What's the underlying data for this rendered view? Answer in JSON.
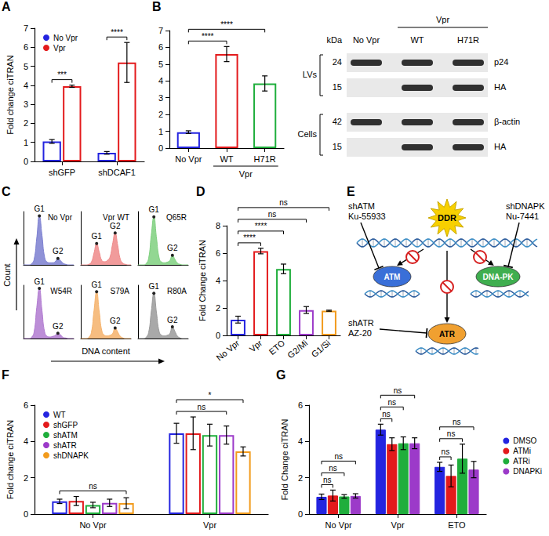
{
  "chart_data": [
    {
      "panel": "A",
      "type": "bar",
      "y_label": "Fold change ciTRAN",
      "categories": [
        "shGFP",
        "shDCAF1"
      ],
      "series": [
        {
          "name": "No Vpr",
          "color": "#2424e0",
          "values": [
            1.05,
            0.45
          ],
          "errors": [
            0.1,
            0.07
          ]
        },
        {
          "name": "Vpr",
          "color": "#e31a1c",
          "values": [
            3.95,
            5.2
          ],
          "errors": [
            0.06,
            1.05
          ]
        }
      ],
      "ylim": [
        0,
        7
      ],
      "yticks": [
        0,
        1,
        2,
        3,
        4,
        5,
        6,
        7
      ],
      "grid": false,
      "legend": "top-left",
      "significance": [
        {
          "from": [
            0,
            0
          ],
          "to": [
            0,
            1
          ],
          "label": "***"
        },
        {
          "from": [
            1,
            0
          ],
          "to": [
            1,
            1
          ],
          "label": "****"
        }
      ]
    },
    {
      "panel": "B",
      "type": "bar",
      "categories": [
        "No Vpr",
        "WT",
        "H71R"
      ],
      "group_label": {
        "text": "Vpr",
        "categories": [
          "WT",
          "H71R"
        ]
      },
      "values": [
        0.95,
        5.6,
        3.85
      ],
      "errors": [
        0.08,
        0.45,
        0.45
      ],
      "colors": [
        "#2424e0",
        "#e31a1c",
        "#1fae3c"
      ],
      "ylim": [
        0,
        7
      ],
      "yticks": [
        0,
        1,
        2,
        3,
        4,
        5,
        6,
        7
      ],
      "grid": false,
      "significance": [
        {
          "from": [
            0,
            0
          ],
          "to": [
            1,
            0
          ],
          "label": "****"
        },
        {
          "from": [
            0,
            0
          ],
          "to": [
            2,
            0
          ],
          "label": "****"
        }
      ]
    },
    {
      "panel": "C",
      "type": "area",
      "x_label": "DNA content",
      "y_label": "Count",
      "x": [
        0,
        1,
        2,
        3,
        4,
        5,
        6,
        7,
        8,
        9,
        10,
        11,
        12,
        13,
        14,
        15,
        16,
        17,
        18,
        19
      ],
      "xlim": [
        0,
        19
      ],
      "ylim": [
        0,
        100
      ],
      "tick_labels": false,
      "grid": false,
      "series": [
        {
          "name": "No Vpr",
          "color": "#7b7fd0",
          "values": [
            0,
            0,
            0,
            2,
            10,
            50,
            92,
            55,
            14,
            5,
            4,
            4,
            6,
            12,
            8,
            3,
            1,
            0,
            0,
            0
          ],
          "peaks": [
            {
              "label": "G1",
              "x": 6
            },
            {
              "label": "G2",
              "x": 13
            }
          ]
        },
        {
          "name": "Vpr WT",
          "color": "#ef8a8a",
          "values": [
            0,
            0,
            0,
            1,
            5,
            22,
            40,
            24,
            8,
            6,
            8,
            14,
            38,
            60,
            36,
            10,
            3,
            1,
            0,
            0
          ],
          "peaks": [
            {
              "label": "G1",
              "x": 6
            },
            {
              "label": "G2",
              "x": 13
            }
          ]
        },
        {
          "name": "Q65R",
          "color": "#7fd07f",
          "values": [
            0,
            0,
            0,
            2,
            12,
            55,
            90,
            50,
            13,
            5,
            4,
            5,
            8,
            18,
            10,
            3,
            1,
            0,
            0,
            0
          ],
          "peaks": [
            {
              "label": "G1",
              "x": 6
            },
            {
              "label": "G2",
              "x": 13
            }
          ]
        },
        {
          "name": "W54R",
          "color": "#b07ad0",
          "values": [
            0,
            0,
            0,
            2,
            12,
            58,
            94,
            52,
            12,
            4,
            3,
            4,
            6,
            10,
            7,
            2,
            1,
            0,
            0,
            0
          ],
          "peaks": [
            {
              "label": "G1",
              "x": 6
            },
            {
              "label": "G2",
              "x": 13
            }
          ]
        },
        {
          "name": "S79A",
          "color": "#f5b26b",
          "values": [
            0,
            0,
            0,
            2,
            11,
            52,
            88,
            50,
            14,
            6,
            5,
            6,
            9,
            20,
            12,
            4,
            1,
            0,
            0,
            0
          ],
          "peaks": [
            {
              "label": "G1",
              "x": 6
            },
            {
              "label": "G2",
              "x": 13
            }
          ]
        },
        {
          "name": "R80A",
          "color": "#9a9a9a",
          "values": [
            0,
            0,
            0,
            2,
            11,
            50,
            85,
            48,
            13,
            6,
            5,
            6,
            9,
            22,
            13,
            4,
            1,
            0,
            0,
            0
          ],
          "peaks": [
            {
              "label": "G1",
              "x": 6
            },
            {
              "label": "G2",
              "x": 13
            }
          ]
        }
      ]
    },
    {
      "panel": "D",
      "type": "bar",
      "y_label": "Fold Change ciTRAN",
      "categories": [
        "No Vpr",
        "Vpr",
        "ETO",
        "G2/Mi",
        "G1/Si"
      ],
      "values": [
        1.15,
        6.15,
        4.85,
        1.85,
        1.8
      ],
      "errors": [
        0.25,
        0.2,
        0.35,
        0.25,
        0.04
      ],
      "colors": [
        "#2424e0",
        "#e31a1c",
        "#1fae3c",
        "#9c3ac9",
        "#f29b1d"
      ],
      "ylim": [
        0,
        8
      ],
      "yticks": [
        0,
        2,
        4,
        6,
        8
      ],
      "grid": false,
      "significance": [
        {
          "from": [
            0,
            0
          ],
          "to": [
            1,
            0
          ],
          "label": "****"
        },
        {
          "from": [
            0,
            0
          ],
          "to": [
            2,
            0
          ],
          "label": "****"
        },
        {
          "from": [
            0,
            0
          ],
          "to": [
            3,
            0
          ],
          "label": "ns"
        },
        {
          "from": [
            0,
            0
          ],
          "to": [
            4,
            0
          ],
          "label": "ns"
        }
      ]
    },
    {
      "panel": "F",
      "type": "bar",
      "y_label": "Fold change ciTRAN",
      "categories": [
        "No Vpr",
        "Vpr"
      ],
      "series": [
        {
          "name": "WT",
          "color": "#2424e0",
          "values": [
            0.7,
            4.45
          ],
          "errors": [
            0.12,
            0.55
          ]
        },
        {
          "name": "shGFP",
          "color": "#e31a1c",
          "values": [
            0.72,
            4.45
          ],
          "errors": [
            0.25,
            0.9
          ]
        },
        {
          "name": "shATM",
          "color": "#1fae3c",
          "values": [
            0.5,
            4.35
          ],
          "errors": [
            0.15,
            0.6
          ]
        },
        {
          "name": "shATR",
          "color": "#9c3ac9",
          "values": [
            0.62,
            4.35
          ],
          "errors": [
            0.2,
            0.5
          ]
        },
        {
          "name": "shDNAPK",
          "color": "#f29b1d",
          "values": [
            0.6,
            3.45
          ],
          "errors": [
            0.3,
            0.25
          ]
        }
      ],
      "ylim": [
        0,
        6
      ],
      "yticks": [
        0,
        2,
        4,
        6
      ],
      "grid": false,
      "legend": "top-left",
      "significance": [
        {
          "from": [
            0,
            0
          ],
          "to": [
            0,
            4
          ],
          "label": "ns"
        },
        {
          "from": [
            1,
            0
          ],
          "to": [
            1,
            3
          ],
          "label": "ns"
        },
        {
          "from": [
            1,
            0
          ],
          "to": [
            1,
            4
          ],
          "label": "*"
        }
      ]
    },
    {
      "panel": "G",
      "type": "bar",
      "y_label": "Fold Change ciTRAN",
      "categories": [
        "No Vpr",
        "Vpr",
        "ETO"
      ],
      "series": [
        {
          "name": "DMSO",
          "color": "#2424e0",
          "values": [
            0.95,
            4.65,
            2.6
          ],
          "errors": [
            0.15,
            0.3,
            0.25
          ]
        },
        {
          "name": "ATMi",
          "color": "#e31a1c",
          "values": [
            1.02,
            3.85,
            2.1
          ],
          "errors": [
            0.3,
            0.35,
            0.6
          ]
        },
        {
          "name": "ATRi",
          "color": "#1fae3c",
          "values": [
            0.97,
            3.9,
            3.05
          ],
          "errors": [
            0.1,
            0.35,
            0.8
          ]
        },
        {
          "name": "DNAPKi",
          "color": "#9c3ac9",
          "values": [
            1.0,
            3.9,
            2.45
          ],
          "errors": [
            0.12,
            0.3,
            0.45
          ]
        }
      ],
      "ylim": [
        0,
        6
      ],
      "yticks": [
        0,
        2,
        4,
        6
      ],
      "grid": false,
      "legend": "right",
      "significance": [
        {
          "from": [
            0,
            0
          ],
          "to": [
            0,
            1
          ],
          "label": "ns"
        },
        {
          "from": [
            0,
            0
          ],
          "to": [
            0,
            2
          ],
          "label": "ns"
        },
        {
          "from": [
            0,
            0
          ],
          "to": [
            0,
            3
          ],
          "label": "ns"
        },
        {
          "from": [
            1,
            0
          ],
          "to": [
            1,
            1
          ],
          "label": "ns"
        },
        {
          "from": [
            1,
            0
          ],
          "to": [
            1,
            2
          ],
          "label": "ns"
        },
        {
          "from": [
            1,
            0
          ],
          "to": [
            1,
            3
          ],
          "label": "ns"
        },
        {
          "from": [
            2,
            0
          ],
          "to": [
            2,
            1
          ],
          "label": "ns"
        },
        {
          "from": [
            2,
            0
          ],
          "to": [
            2,
            2
          ],
          "label": "ns"
        },
        {
          "from": [
            2,
            0
          ],
          "to": [
            2,
            3
          ],
          "label": "ns"
        }
      ]
    }
  ],
  "blot": {
    "columns": [
      "No Vpr",
      "WT",
      "H71R"
    ],
    "group": {
      "text": "Vpr",
      "columns": [
        "WT",
        "H71R"
      ]
    },
    "unit": "kDa",
    "sections": [
      {
        "label": "LVs",
        "rows": [
          {
            "kda": "24",
            "protein": "p24",
            "bands": [
              true,
              true,
              true
            ]
          },
          {
            "kda": "15",
            "protein": "HA",
            "bands": [
              false,
              true,
              true
            ]
          }
        ]
      },
      {
        "label": "Cells",
        "rows": [
          {
            "kda": "42",
            "protein": "β-actin",
            "bands": [
              true,
              true,
              true
            ]
          },
          {
            "kda": "15",
            "protein": "HA",
            "bands": [
              false,
              true,
              true
            ]
          }
        ]
      }
    ]
  },
  "diagram": {
    "panel": "E",
    "center": "DDR",
    "targets": [
      {
        "protein": "ATM",
        "inhibitors": [
          "shATM",
          "Ku-55933"
        ]
      },
      {
        "protein": "DNA-PK",
        "inhibitors": [
          "shDNAPK",
          "Nu-7441"
        ]
      },
      {
        "protein": "ATR",
        "inhibitors": [
          "shATR",
          "AZ-20"
        ]
      }
    ]
  }
}
